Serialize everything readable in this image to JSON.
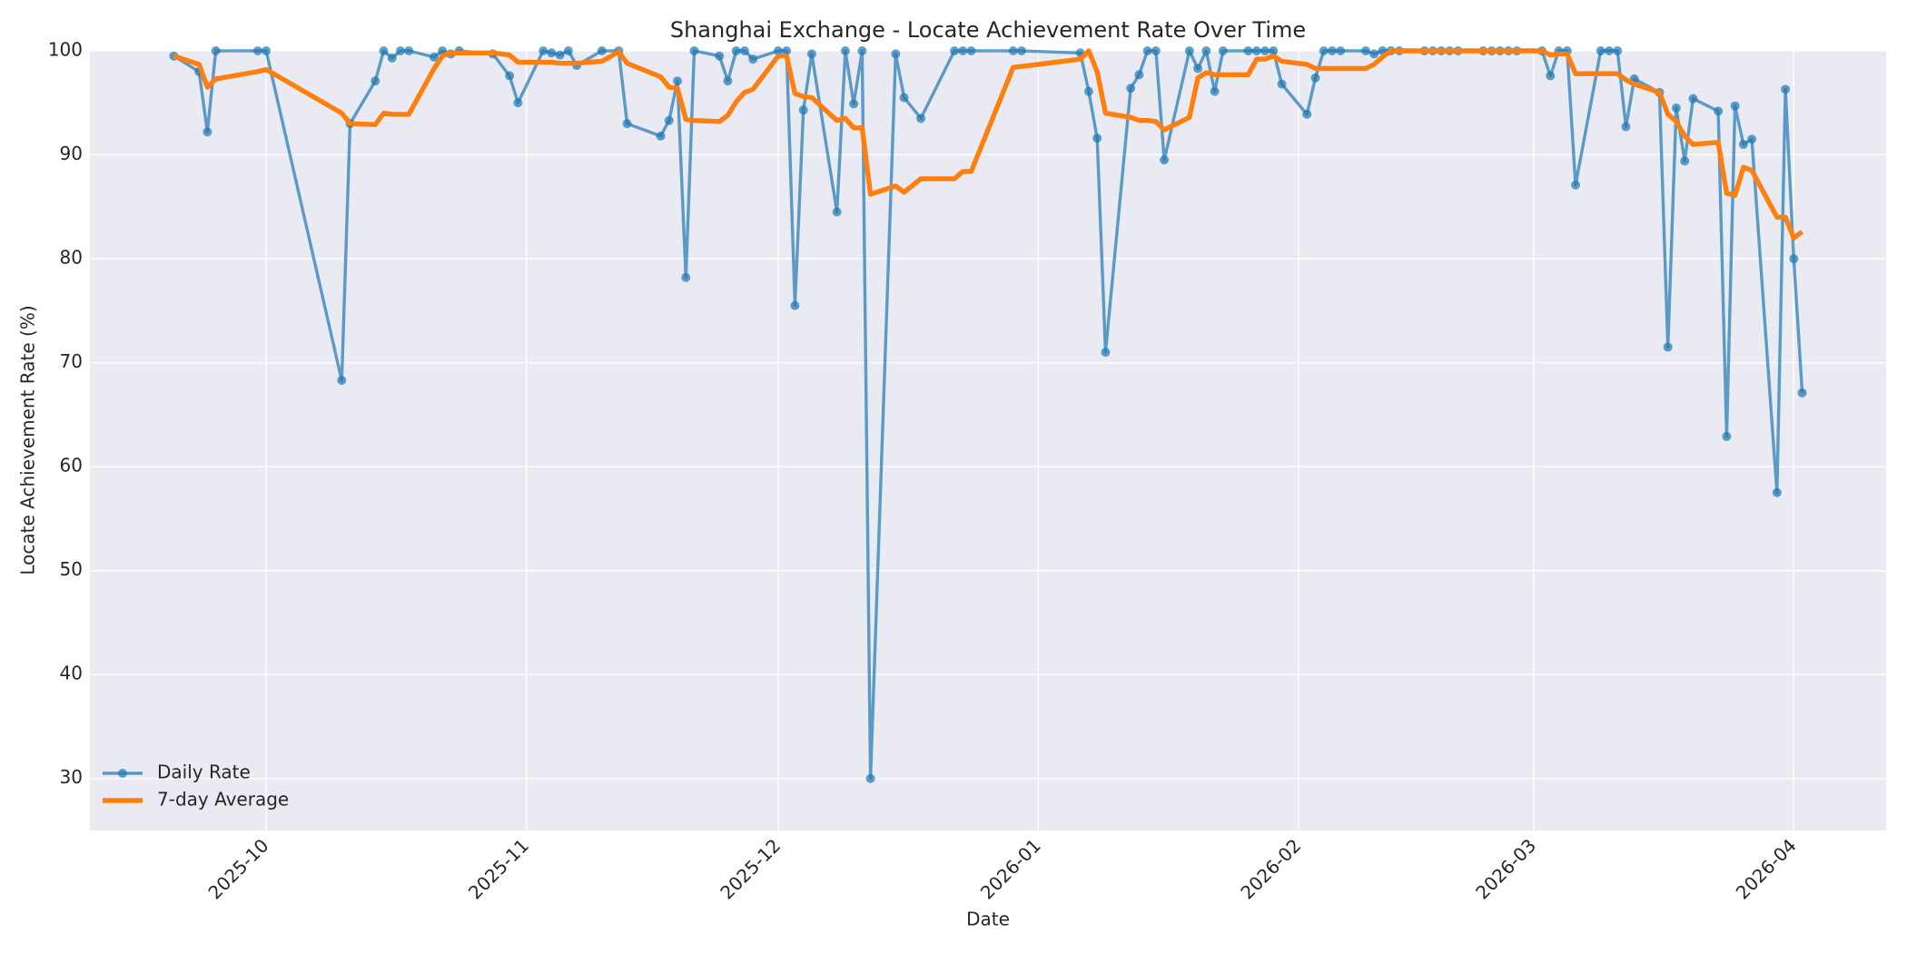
{
  "chart_data": {
    "type": "line",
    "title": "Shanghai Exchange - Locate Achievement Rate Over Time",
    "x_label": "Date",
    "y_label": "Locate Achievement Rate (%)",
    "x": [
      "2025-09-20",
      "2025-09-23",
      "2025-09-24",
      "2025-09-25",
      "2025-09-30",
      "2025-10-01",
      "2025-10-10",
      "2025-10-11",
      "2025-10-14",
      "2025-10-15",
      "2025-10-16",
      "2025-10-17",
      "2025-10-18",
      "2025-10-21",
      "2025-10-22",
      "2025-10-23",
      "2025-10-24",
      "2025-10-28",
      "2025-10-30",
      "2025-10-31",
      "2025-11-03",
      "2025-11-04",
      "2025-11-05",
      "2025-11-06",
      "2025-11-07",
      "2025-11-10",
      "2025-11-12",
      "2025-11-13",
      "2025-11-17",
      "2025-11-18",
      "2025-11-19",
      "2025-11-20",
      "2025-11-21",
      "2025-11-24",
      "2025-11-25",
      "2025-11-26",
      "2025-11-27",
      "2025-11-28",
      "2025-12-01",
      "2025-12-02",
      "2025-12-03",
      "2025-12-04",
      "2025-12-05",
      "2025-12-08",
      "2025-12-09",
      "2025-12-10",
      "2025-12-11",
      "2025-12-12",
      "2025-12-15",
      "2025-12-16",
      "2025-12-18",
      "2025-12-22",
      "2025-12-23",
      "2025-12-24",
      "2025-12-29",
      "2025-12-30",
      "2026-01-06",
      "2026-01-07",
      "2026-01-08",
      "2026-01-09",
      "2026-01-12",
      "2026-01-13",
      "2026-01-14",
      "2026-01-15",
      "2026-01-16",
      "2026-01-19",
      "2026-01-20",
      "2026-01-21",
      "2026-01-22",
      "2026-01-23",
      "2026-01-26",
      "2026-01-27",
      "2026-01-28",
      "2026-01-29",
      "2026-01-30",
      "2026-02-02",
      "2026-02-03",
      "2026-02-04",
      "2026-02-05",
      "2026-02-06",
      "2026-02-09",
      "2026-02-10",
      "2026-02-11",
      "2026-02-12",
      "2026-02-13",
      "2026-02-16",
      "2026-02-17",
      "2026-02-18",
      "2026-02-19",
      "2026-02-20",
      "2026-02-23",
      "2026-02-24",
      "2026-02-25",
      "2026-02-26",
      "2026-02-27",
      "2026-03-02",
      "2026-03-03",
      "2026-03-04",
      "2026-03-05",
      "2026-03-06",
      "2026-03-09",
      "2026-03-10",
      "2026-03-11",
      "2026-03-12",
      "2026-03-13",
      "2026-03-16",
      "2026-03-17",
      "2026-03-18",
      "2026-03-19",
      "2026-03-20",
      "2026-03-23",
      "2026-03-24",
      "2026-03-25",
      "2026-03-26",
      "2026-03-27",
      "2026-03-30",
      "2026-03-31",
      "2026-04-01",
      "2026-04-02"
    ],
    "series": [
      {
        "name": "Daily Rate",
        "color": "#1f77b4",
        "opacity": 0.7,
        "width": 3.4,
        "marker": true,
        "values": [
          99.5,
          98,
          92.2,
          100,
          100,
          100,
          68.3,
          93,
          97.1,
          100,
          99.3,
          100,
          100,
          99.4,
          100,
          99.7,
          100,
          99.7,
          97.6,
          95,
          100,
          99.8,
          99.6,
          100,
          98.6,
          100,
          100,
          93,
          91.8,
          93.3,
          97.1,
          78.2,
          100,
          99.5,
          97.1,
          100,
          100,
          99.2,
          100,
          100,
          75.5,
          94.3,
          99.7,
          84.5,
          100,
          94.9,
          100,
          30,
          99.7,
          95.5,
          93.5,
          100,
          100,
          100,
          100,
          100,
          99.8,
          96.1,
          91.6,
          71,
          96.4,
          97.7,
          100,
          100,
          89.5,
          100,
          98.3,
          100,
          96.1,
          100,
          100,
          100,
          100,
          100,
          96.8,
          93.9,
          97.4,
          100,
          100,
          100,
          100,
          99.7,
          100,
          100,
          100,
          100,
          100,
          100,
          100,
          100,
          100,
          100,
          100,
          100,
          100,
          100,
          97.6,
          100,
          100,
          87.1,
          100,
          100,
          100,
          92.7,
          97.3,
          96,
          71.5,
          94.5,
          89.4,
          95.4,
          94.2,
          62.9,
          94.7,
          91,
          91.5,
          57.5,
          96.3,
          80,
          67.1
        ]
      },
      {
        "name": "7-day Average",
        "color": "#ff7f0e",
        "opacity": 1,
        "width": 5.4,
        "marker": false,
        "values": [
          99.5,
          98.7,
          96.5,
          97.3,
          98,
          98.2,
          94,
          93,
          92.9,
          94,
          93.9,
          93.9,
          93.9,
          98.3,
          99.5,
          99.8,
          99.8,
          99.8,
          99.6,
          98.9,
          98.9,
          98.9,
          98.8,
          98.8,
          98.8,
          99,
          99.9,
          98.8,
          97.5,
          96.5,
          96.4,
          93.4,
          93.3,
          93.2,
          93.8,
          95.1,
          96,
          96.3,
          99.5,
          99.5,
          95.9,
          95.6,
          95.5,
          93.3,
          93.5,
          92.6,
          92.6,
          86.2,
          87,
          86.4,
          87.7,
          87.7,
          88.4,
          88.4,
          98.4,
          98.5,
          99.2,
          100,
          98,
          94,
          93.6,
          93.3,
          93.3,
          93.2,
          92.4,
          93.6,
          97.4,
          97.9,
          97.7,
          97.7,
          97.7,
          99.2,
          99.2,
          99.5,
          99,
          98.7,
          98.3,
          98.3,
          98.3,
          98.3,
          98.3,
          98.7,
          99.4,
          100,
          100,
          100,
          100,
          100,
          100,
          100,
          100,
          100,
          100,
          100,
          100,
          100,
          99.6,
          99.7,
          99.7,
          97.8,
          97.8,
          97.8,
          97.8,
          97.2,
          96.8,
          96,
          93.9,
          93.2,
          91.8,
          91,
          91.2,
          86.3,
          86.1,
          88.8,
          88.5,
          84,
          84,
          82,
          82.6
        ]
      }
    ],
    "xlim": [
      "2025-09-10",
      "2026-04-12"
    ],
    "xticks": [
      "2025-10",
      "2025-11",
      "2025-12",
      "2026-01",
      "2026-02",
      "2026-03",
      "2026-04"
    ],
    "ylim": [
      25,
      100
    ],
    "yticks": [
      30,
      40,
      50,
      60,
      70,
      80,
      90,
      100
    ],
    "grid": true,
    "legend": "lower left"
  }
}
